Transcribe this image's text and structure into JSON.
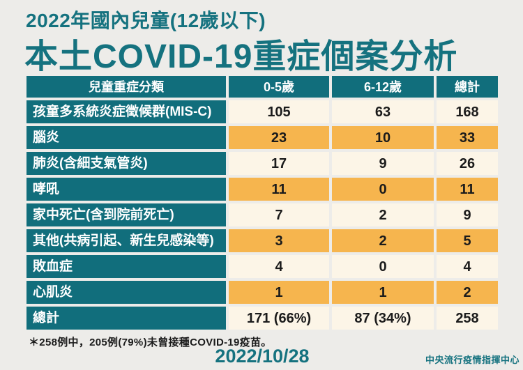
{
  "colors": {
    "teal": "#116E7C",
    "title_teal": "#15727F",
    "orange": "#F6B54E",
    "cream": "#FCF5E7",
    "background": "#EDECE9",
    "text_dark": "#1B1B1B",
    "text_white": "#FFFFFF"
  },
  "header": {
    "title_line1": "2022年國內兒童(12歲以下)",
    "title_line2": "本土COVID-19重症個案分析"
  },
  "chart_data": {
    "type": "table",
    "title": "2022年國內兒童(12歲以下)本土COVID-19重症個案分析",
    "columns": [
      "兒童重症分類",
      "0-5歲",
      "6-12歲",
      "總計"
    ],
    "rows": [
      [
        "孩童多系統炎症徵候群(MIS-C)",
        "105",
        "63",
        "168"
      ],
      [
        "腦炎",
        "23",
        "10",
        "33"
      ],
      [
        "肺炎(含細支氣管炎)",
        "17",
        "9",
        "26"
      ],
      [
        "哮吼",
        "11",
        "0",
        "11"
      ],
      [
        "家中死亡(含到院前死亡)",
        "7",
        "2",
        "9"
      ],
      [
        "其他(共病引起、新生兒感染等)",
        "3",
        "2",
        "5"
      ],
      [
        "敗血症",
        "4",
        "0",
        "4"
      ],
      [
        "心肌炎",
        "1",
        "1",
        "2"
      ],
      [
        "總計",
        "171 (66%)",
        "87 (34%)",
        "258"
      ]
    ],
    "footnote": "＊258例中，205例(79%)未曾接種COVID-19疫苗。",
    "layout": "alternating cream/orange data rows, teal label column and header"
  },
  "footnote": "＊258例中，205例(79%)未曾接種COVID-19疫苗。",
  "footer": {
    "date": "2022/10/28",
    "organization": "中央流行疫情指揮中心"
  }
}
